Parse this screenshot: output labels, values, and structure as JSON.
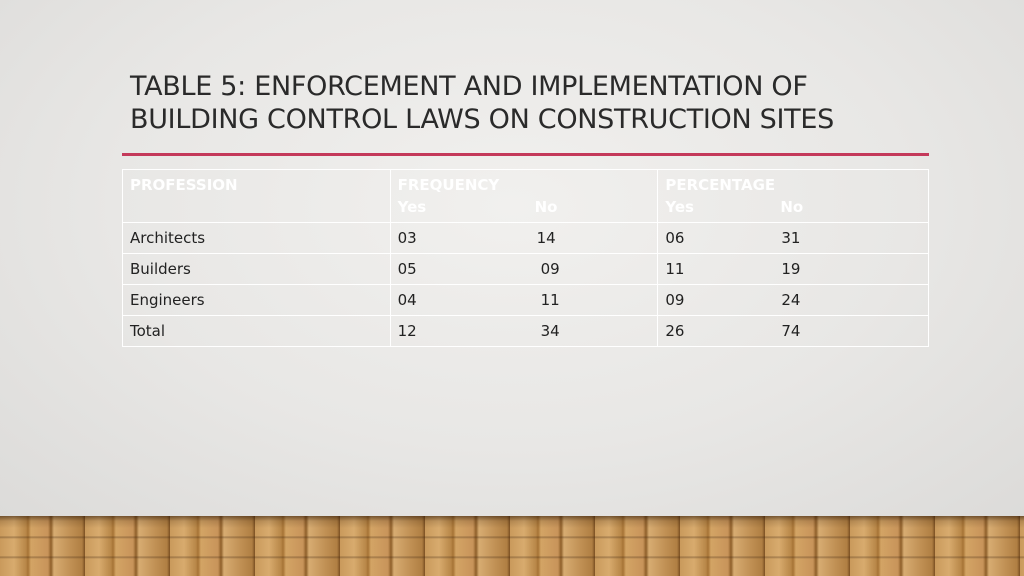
{
  "slide": {
    "title_line1": "TABLE 5: ENFORCEMENT AND IMPLEMENTATION OF",
    "title_line2": "BUILDING CONTROL LAWS ON CONSTRUCTION SITES",
    "accent_color": "#c4395a"
  },
  "table": {
    "headers": {
      "profession": "PROFESSION",
      "frequency": "FREQUENCY",
      "frequency_yes": "Yes",
      "frequency_no": "No",
      "percentage": "PERCENTAGE",
      "percentage_yes": "Yes",
      "percentage_no": "No"
    },
    "rows": [
      {
        "profession": "Architects",
        "freq_yes": "03",
        "freq_no": "14",
        "pct_yes": "06",
        "pct_no": "31"
      },
      {
        "profession": "Builders",
        "freq_yes": "05",
        "freq_no": "09",
        "pct_yes": "11",
        "pct_no": "19"
      },
      {
        "profession": "Engineers",
        "freq_yes": "04",
        "freq_no": "11",
        "pct_yes": "09",
        "pct_no": "24"
      },
      {
        "profession": "Total",
        "freq_yes": "12",
        "freq_no": "34",
        "pct_yes": "26",
        "pct_no": "74"
      }
    ]
  }
}
